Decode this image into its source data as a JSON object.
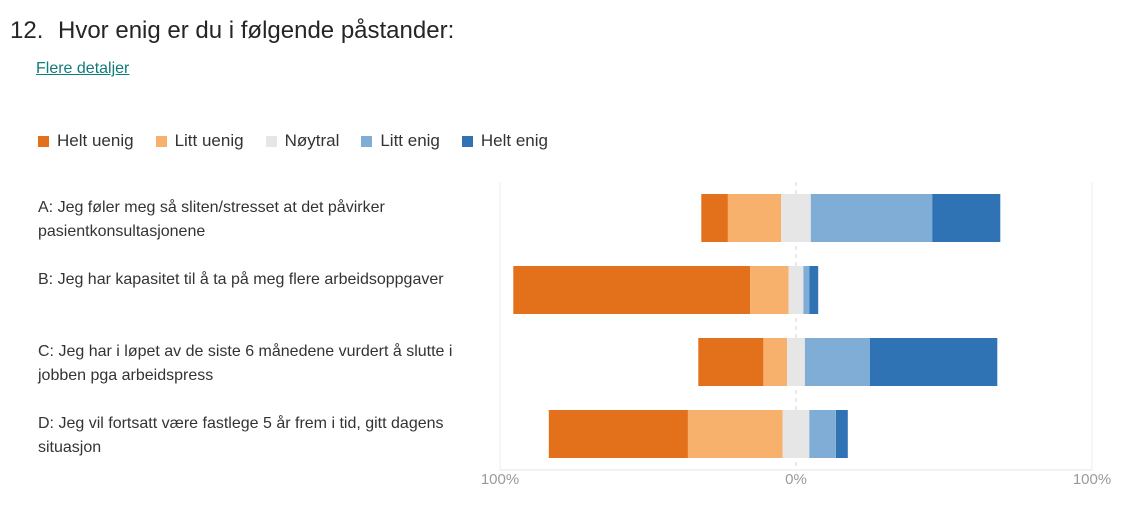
{
  "question": {
    "number": "12.",
    "title": "Hvor enig er du i følgende påstander:",
    "details_link": "Flere detaljer"
  },
  "colors": {
    "helt_uenig": "#e3701a",
    "litt_uenig": "#f8b06d",
    "noytral": "#e6e6e6",
    "litt_enig": "#7fadd6",
    "helt_enig": "#2f73b5"
  },
  "chart_data": {
    "type": "bar",
    "orientation": "horizontal",
    "stacked": "diverging",
    "title": "Hvor enig er du i følgende påstander:",
    "legend_position": "top-left",
    "categories": [
      "A: Jeg føler meg så sliten/stresset at det påvirker pasientkonsultasjonene",
      "B: Jeg har kapasitet til å ta på meg flere arbeidsoppgaver",
      "C: Jeg har i løpet av de siste 6 månedene vurdert å slutte i jobben pga arbeidspress",
      "D: Jeg vil fortsatt være fastlege 5 år frem i tid, gitt dagens situasjon"
    ],
    "series": [
      {
        "name": "Helt uenig",
        "color": "#e3701a",
        "values": [
          9,
          80,
          22,
          47
        ]
      },
      {
        "name": "Litt uenig",
        "color": "#f8b06d",
        "values": [
          18,
          13,
          8,
          32
        ]
      },
      {
        "name": "Nøytral",
        "color": "#e6e6e6",
        "values": [
          10,
          5,
          6,
          9
        ]
      },
      {
        "name": "Litt enig",
        "color": "#7fadd6",
        "values": [
          41,
          2,
          22,
          9
        ]
      },
      {
        "name": "Helt enig",
        "color": "#2f73b5",
        "values": [
          23,
          3,
          43,
          4
        ]
      }
    ],
    "neutral_series": "Nøytral",
    "xlim": [
      -100,
      100
    ],
    "x_ticks": [
      "100%",
      "0%",
      "100%"
    ]
  }
}
